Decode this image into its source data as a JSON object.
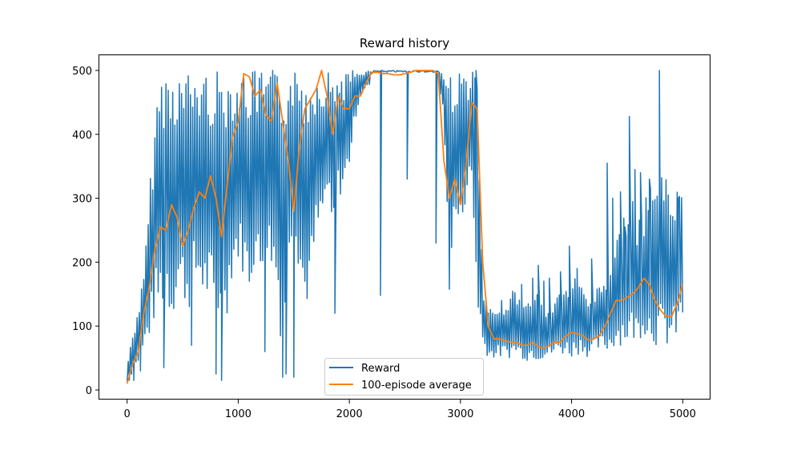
{
  "chart_data": {
    "type": "line",
    "title": "Reward history",
    "xlabel": "",
    "ylabel": "",
    "xlim": [
      -250,
      5250
    ],
    "ylim": [
      -15,
      525
    ],
    "xticks": [
      0,
      1000,
      2000,
      3000,
      4000,
      5000
    ],
    "xtick_labels": [
      "0",
      "1000",
      "2000",
      "3000",
      "4000",
      "5000"
    ],
    "yticks": [
      0,
      100,
      200,
      300,
      400,
      500
    ],
    "ytick_labels": [
      "0",
      "100",
      "200",
      "300",
      "400",
      "500"
    ],
    "grid": false,
    "legend_position": "lower-center",
    "series": [
      {
        "name": "Reward",
        "color": "#1f77b4",
        "sampling": "envelope per ~20 episodes (reward per episode oscillates between low and high)",
        "x": [
          0,
          50,
          100,
          150,
          200,
          250,
          300,
          350,
          400,
          450,
          500,
          550,
          600,
          650,
          700,
          750,
          800,
          850,
          900,
          950,
          1000,
          1050,
          1100,
          1150,
          1200,
          1250,
          1300,
          1350,
          1400,
          1450,
          1500,
          1550,
          1600,
          1650,
          1700,
          1750,
          1800,
          1850,
          1900,
          1950,
          2000,
          2050,
          2100,
          2150,
          2200,
          2250,
          2300,
          2350,
          2400,
          2450,
          2500,
          2550,
          2600,
          2650,
          2700,
          2750,
          2800,
          2850,
          2900,
          2950,
          3000,
          3050,
          3100,
          3150,
          3200,
          3250,
          3300,
          3350,
          3400,
          3450,
          3500,
          3550,
          3600,
          3650,
          3700,
          3750,
          3800,
          3850,
          3900,
          3950,
          4000,
          4050,
          4100,
          4150,
          4200,
          4250,
          4300,
          4350,
          4400,
          4450,
          4500,
          4550,
          4600,
          4650,
          4700,
          4750,
          4800,
          4850,
          4900,
          4950,
          5000
        ],
        "low": [
          10,
          20,
          40,
          60,
          80,
          110,
          120,
          140,
          100,
          150,
          140,
          120,
          150,
          160,
          130,
          140,
          60,
          150,
          120,
          180,
          200,
          180,
          150,
          200,
          160,
          210,
          190,
          150,
          40,
          200,
          260,
          180,
          120,
          150,
          230,
          250,
          300,
          220,
          300,
          310,
          350,
          420,
          460,
          470,
          480,
          490,
          490,
          490,
          490,
          490,
          490,
          490,
          490,
          490,
          490,
          490,
          490,
          420,
          150,
          260,
          240,
          300,
          320,
          120,
          70,
          50,
          50,
          50,
          50,
          50,
          55,
          50,
          45,
          50,
          45,
          50,
          50,
          55,
          55,
          55,
          50,
          55,
          60,
          50,
          55,
          60,
          60,
          60,
          70,
          70,
          70,
          75,
          75,
          90,
          75,
          70,
          65,
          65,
          65,
          80,
          100
        ],
        "high": [
          40,
          90,
          130,
          180,
          310,
          430,
          500,
          500,
          500,
          500,
          500,
          500,
          500,
          500,
          500,
          500,
          500,
          500,
          500,
          500,
          500,
          500,
          500,
          500,
          500,
          500,
          500,
          500,
          500,
          500,
          500,
          500,
          500,
          500,
          500,
          500,
          500,
          500,
          500,
          500,
          500,
          500,
          500,
          500,
          500,
          500,
          500,
          500,
          500,
          500,
          500,
          500,
          500,
          500,
          500,
          500,
          500,
          500,
          500,
          500,
          500,
          500,
          500,
          500,
          160,
          130,
          120,
          140,
          140,
          150,
          165,
          130,
          140,
          145,
          155,
          130,
          130,
          140,
          165,
          160,
          170,
          180,
          165,
          150,
          155,
          170,
          175,
          200,
          230,
          270,
          300,
          300,
          260,
          290,
          320,
          330,
          360,
          330,
          320,
          320,
          320
        ],
        "spikes": [
          {
            "x": 60,
            "y": 15
          },
          {
            "x": 120,
            "y": 30
          },
          {
            "x": 330,
            "y": 35
          },
          {
            "x": 580,
            "y": 70
          },
          {
            "x": 800,
            "y": 25
          },
          {
            "x": 850,
            "y": 15
          },
          {
            "x": 1240,
            "y": 60
          },
          {
            "x": 1400,
            "y": 20
          },
          {
            "x": 1430,
            "y": 25
          },
          {
            "x": 1500,
            "y": 20
          },
          {
            "x": 1870,
            "y": 120
          },
          {
            "x": 2280,
            "y": 148
          },
          {
            "x": 2520,
            "y": 330
          },
          {
            "x": 2780,
            "y": 230
          },
          {
            "x": 3140,
            "y": 500
          },
          {
            "x": 3550,
            "y": 165
          },
          {
            "x": 3650,
            "y": 175
          },
          {
            "x": 3700,
            "y": 195
          },
          {
            "x": 3750,
            "y": 170
          },
          {
            "x": 3800,
            "y": 175
          },
          {
            "x": 3900,
            "y": 185
          },
          {
            "x": 3980,
            "y": 225
          },
          {
            "x": 4050,
            "y": 190
          },
          {
            "x": 4180,
            "y": 205
          },
          {
            "x": 4320,
            "y": 355
          },
          {
            "x": 4370,
            "y": 300
          },
          {
            "x": 4440,
            "y": 310
          },
          {
            "x": 4480,
            "y": 255
          },
          {
            "x": 4520,
            "y": 428
          },
          {
            "x": 4570,
            "y": 345
          },
          {
            "x": 4620,
            "y": 340
          },
          {
            "x": 4700,
            "y": 330
          },
          {
            "x": 4790,
            "y": 500
          },
          {
            "x": 4870,
            "y": 250
          },
          {
            "x": 4960,
            "y": 300
          }
        ]
      },
      {
        "name": "100-episode average",
        "color": "#ff7f0e",
        "x": [
          0,
          50,
          100,
          150,
          200,
          250,
          300,
          350,
          400,
          450,
          500,
          550,
          600,
          650,
          700,
          750,
          800,
          850,
          900,
          950,
          1000,
          1050,
          1100,
          1150,
          1200,
          1250,
          1300,
          1350,
          1400,
          1450,
          1500,
          1550,
          1600,
          1650,
          1700,
          1750,
          1800,
          1850,
          1900,
          1950,
          2000,
          2050,
          2100,
          2150,
          2200,
          2250,
          2300,
          2350,
          2400,
          2450,
          2500,
          2550,
          2600,
          2650,
          2700,
          2750,
          2800,
          2850,
          2900,
          2950,
          3000,
          3050,
          3100,
          3150,
          3200,
          3250,
          3300,
          3350,
          3400,
          3450,
          3500,
          3550,
          3600,
          3650,
          3700,
          3750,
          3800,
          3850,
          3900,
          3950,
          4000,
          4050,
          4100,
          4150,
          4200,
          4250,
          4300,
          4350,
          4400,
          4450,
          4500,
          4550,
          4600,
          4650,
          4700,
          4750,
          4800,
          4850,
          4900,
          4950,
          5000
        ],
        "y": [
          10,
          40,
          60,
          120,
          160,
          220,
          255,
          250,
          290,
          270,
          225,
          250,
          285,
          310,
          300,
          335,
          300,
          240,
          320,
          395,
          420,
          495,
          490,
          460,
          470,
          430,
          420,
          480,
          420,
          360,
          280,
          380,
          440,
          455,
          470,
          500,
          460,
          400,
          460,
          440,
          440,
          460,
          460,
          480,
          497,
          497,
          495,
          495,
          493,
          493,
          495,
          497,
          500,
          500,
          500,
          500,
          495,
          360,
          300,
          330,
          290,
          350,
          450,
          440,
          200,
          100,
          80,
          80,
          77,
          75,
          75,
          70,
          70,
          75,
          68,
          65,
          70,
          75,
          75,
          85,
          90,
          88,
          85,
          78,
          80,
          85,
          100,
          120,
          140,
          140,
          145,
          150,
          160,
          175,
          165,
          140,
          125,
          115,
          115,
          135,
          165
        ]
      }
    ]
  }
}
